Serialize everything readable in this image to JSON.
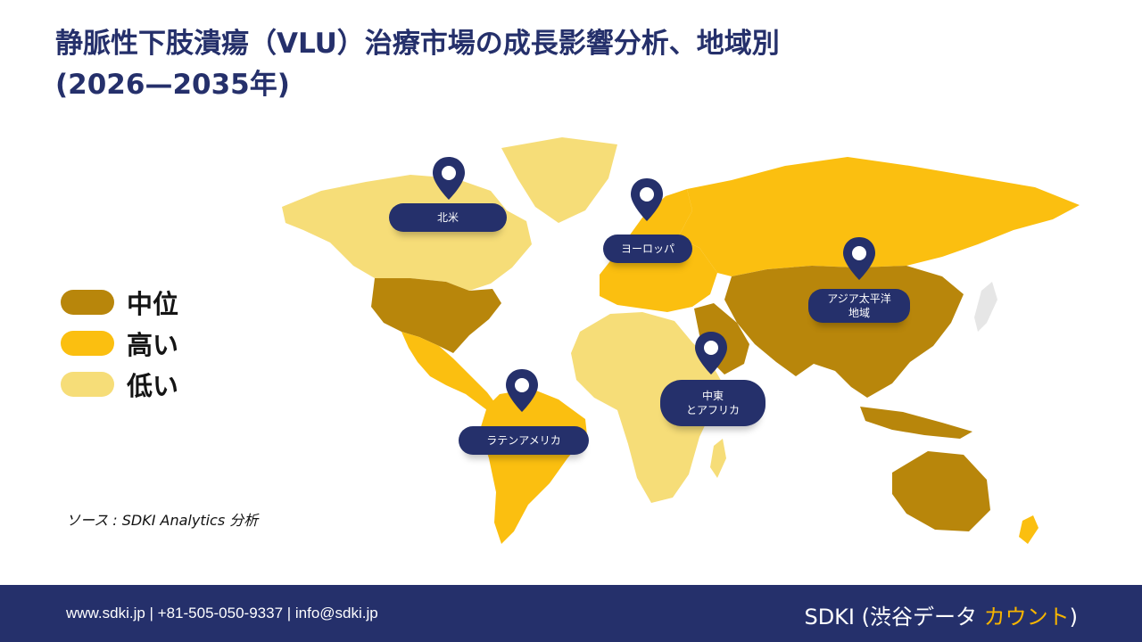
{
  "title": {
    "line1": "静脈性下肢潰瘍（VLU）治療市場の成長影響分析、地域別",
    "line2": "(2026—2035年)"
  },
  "legend": [
    {
      "label": "中位",
      "color": "#b8860b"
    },
    {
      "label": "高い",
      "color": "#fbbf10"
    },
    {
      "label": "低い",
      "color": "#f6dd78"
    }
  ],
  "regions": [
    {
      "name": "北米",
      "level": "低い"
    },
    {
      "name": "ヨーロッパ",
      "level": "高い"
    },
    {
      "name": "アジア太平洋\n地域",
      "level": "中位"
    },
    {
      "name": "中東\nとアフリカ",
      "level": "低い"
    },
    {
      "name": "ラテンアメリカ",
      "level": "高い"
    }
  ],
  "source": "ソース : SDKI Analytics 分析",
  "footer": {
    "contact": "www.sdki.jp | +81-505-050-9337 | info@sdki.jp",
    "brand_prefix": "SDKI (渋谷データ ",
    "brand_accent": "カウント",
    "brand_suffix": ")"
  },
  "colors": {
    "navy": "#25306b",
    "medium": "#b8860b",
    "high": "#fbbf10",
    "low": "#f6dd78"
  }
}
